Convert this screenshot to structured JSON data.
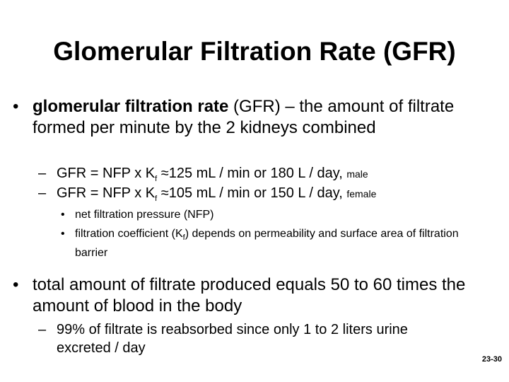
{
  "title": "Glomerular Filtration Rate (GFR)",
  "bullets": [
    {
      "bold": "glomerular filtration rate",
      "text": " (GFR) – the amount of filtrate formed per minute by the 2 kidneys combined",
      "items": [
        {
          "text": "GFR = NFP x K",
          "sub": "f",
          "rest": " ≈125 mL / min or 180 L / day, ",
          "note": "male"
        },
        {
          "text": "GFR = NFP x K",
          "sub": "f",
          "rest": " ≈105 mL / min or 150 L / day, ",
          "note": "female"
        }
      ],
      "subitems": [
        {
          "text": "net filtration pressure (NFP)"
        },
        {
          "text": "filtration coefficient (K",
          "sub": "f",
          "rest": ") depends on permeability and surface area of filtration barrier"
        }
      ]
    },
    {
      "text": "total amount of filtrate produced equals 50 to 60 times the amount of blood in the body",
      "items": [
        {
          "text": "99% of filtrate is reabsorbed since only 1 to 2  liters urine excreted / day"
        }
      ]
    }
  ],
  "footer": "23-30"
}
